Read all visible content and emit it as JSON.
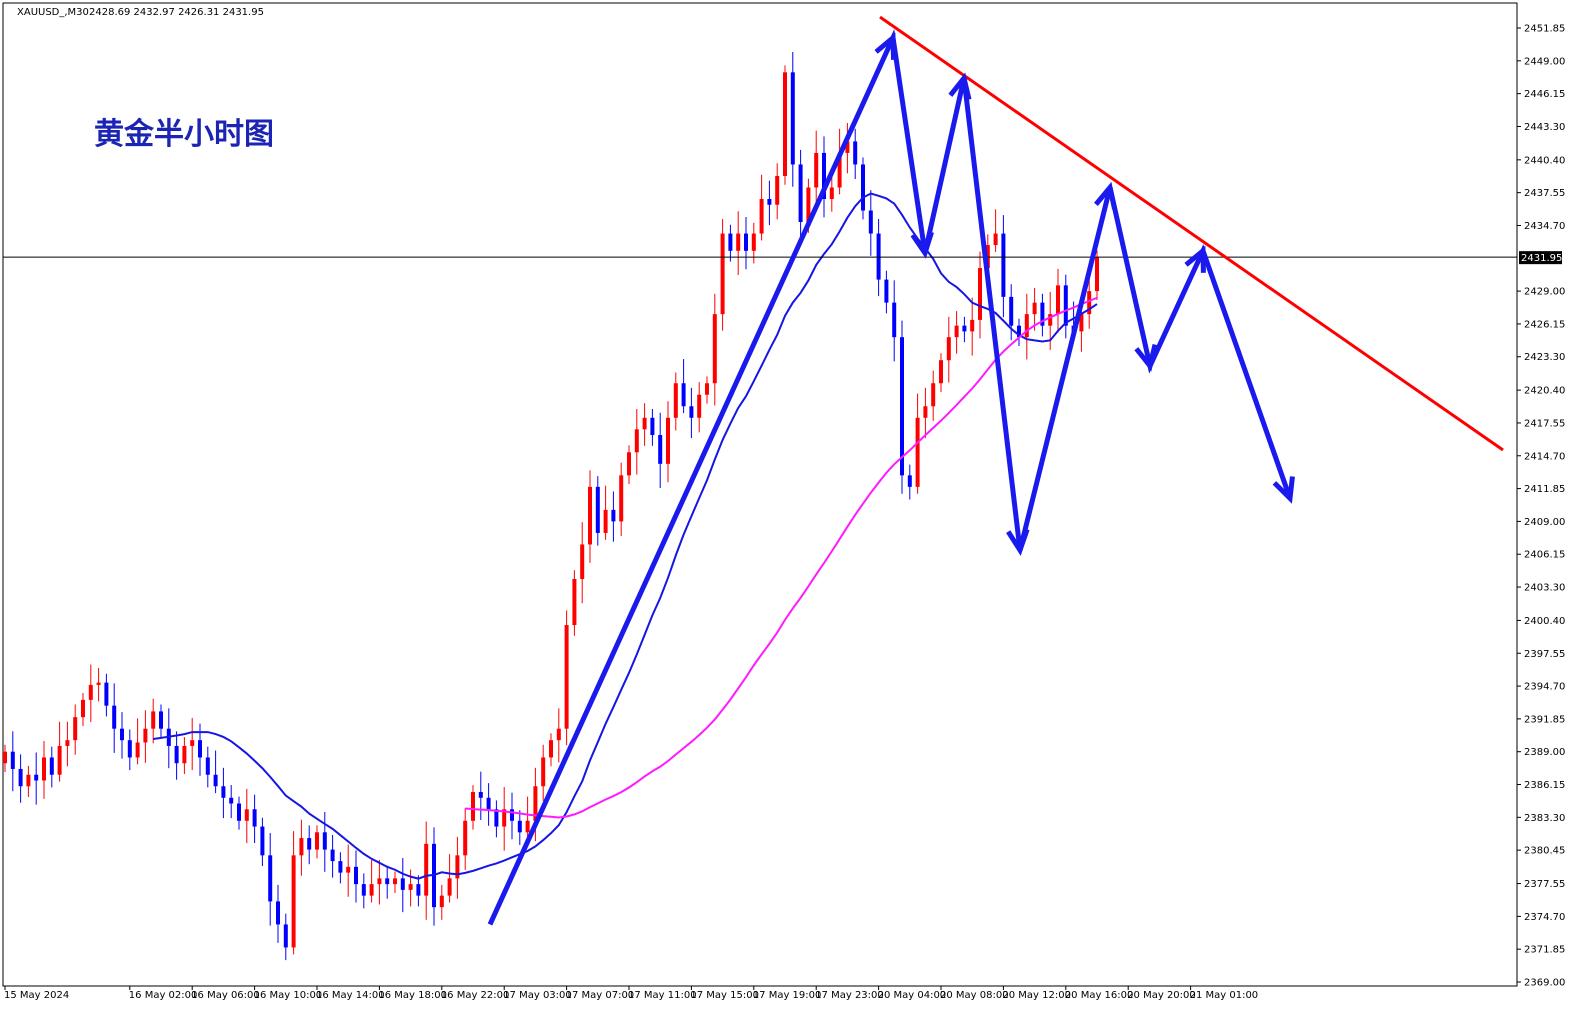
{
  "header": {
    "symbol": "XAUUSD_,M30",
    "ohlc": "2428.69 2432.97 2426.31 2431.95"
  },
  "colors": {
    "bull": "#ff0000",
    "bear": "#0000ff",
    "ma_fast": "#1515e6",
    "ma_slow": "#ff1aff",
    "trendline": "#ff0000",
    "arrows": "#1a1aee",
    "title": "#1c24b4"
  },
  "chart_data": {
    "type": "candlestick",
    "title": "黄金半小时图",
    "current_price": 2431.95,
    "current_price_label": "2431.95",
    "ylim": [
      2369.0,
      2453.0
    ],
    "y_ticks": [
      "2451.85",
      "2449.00",
      "2446.15",
      "2443.30",
      "2440.40",
      "2437.55",
      "2434.70",
      "2429.00",
      "2426.15",
      "2423.30",
      "2420.40",
      "2417.55",
      "2414.70",
      "2411.85",
      "2409.00",
      "2406.15",
      "2403.30",
      "2400.40",
      "2397.55",
      "2394.70",
      "2391.85",
      "2389.00",
      "2386.15",
      "2383.30",
      "2380.45",
      "2377.55",
      "2374.70",
      "2371.85",
      "2369.00"
    ],
    "x_labels": [
      {
        "label": "15 May 2024",
        "bar": 0
      },
      {
        "label": "16 May 02:00",
        "bar": 16
      },
      {
        "label": "16 May 06:00",
        "bar": 24
      },
      {
        "label": "16 May 10:00",
        "bar": 32
      },
      {
        "label": "16 May 14:00",
        "bar": 40
      },
      {
        "label": "16 May 18:00",
        "bar": 48
      },
      {
        "label": "16 May 22:00",
        "bar": 56
      },
      {
        "label": "17 May 03:00",
        "bar": 64
      },
      {
        "label": "17 May 07:00",
        "bar": 72
      },
      {
        "label": "17 May 11:00",
        "bar": 80
      },
      {
        "label": "17 May 15:00",
        "bar": 88
      },
      {
        "label": "17 May 19:00",
        "bar": 96
      },
      {
        "label": "17 May 23:00",
        "bar": 104
      },
      {
        "label": "20 May 04:00",
        "bar": 112
      },
      {
        "label": "20 May 08:00",
        "bar": 120
      },
      {
        "label": "20 May 12:00",
        "bar": 128
      },
      {
        "label": "20 May 16:00",
        "bar": 136
      },
      {
        "label": "20 May 20:00",
        "bar": 144
      },
      {
        "label": "21 May 01:00",
        "bar": 152
      }
    ],
    "closes": [
      2389.0,
      2387.5,
      2386.0,
      2387.0,
      2386.5,
      2388.5,
      2387.0,
      2389.5,
      2390.0,
      2392.0,
      2393.5,
      2394.8,
      2395.0,
      2393.0,
      2391.0,
      2390.0,
      2388.5,
      2389.8,
      2391.0,
      2392.5,
      2391.0,
      2389.5,
      2388.0,
      2389.5,
      2390.0,
      2388.5,
      2387.0,
      2386.0,
      2385.0,
      2384.5,
      2383.0,
      2384.0,
      2382.5,
      2380.0,
      2376.0,
      2374.0,
      2372.0,
      2380.0,
      2381.5,
      2380.5,
      2382.0,
      2380.5,
      2379.5,
      2378.5,
      2379.0,
      2377.5,
      2376.5,
      2377.5,
      2378.0,
      2377.5,
      2378.0,
      2377.0,
      2377.5,
      2376.5,
      2381.0,
      2375.5,
      2376.5,
      2378.0,
      2380.0,
      2383.0,
      2385.5,
      2385.0,
      2384.0,
      2382.5,
      2384.0,
      2383.0,
      2382.0,
      2383.0,
      2386.0,
      2388.5,
      2390.0,
      2391.0,
      2400.0,
      2404.0,
      2407.0,
      2412.0,
      2408.0,
      2410.0,
      2409.0,
      2413.0,
      2415.0,
      2417.0,
      2418.0,
      2416.5,
      2414.0,
      2418.0,
      2421.0,
      2419.0,
      2418.0,
      2420.0,
      2421.0,
      2427.0,
      2434.0,
      2432.5,
      2434.0,
      2432.5,
      2434.0,
      2437.0,
      2436.5,
      2439.0,
      2448.0,
      2440.0,
      2435.0,
      2438.0,
      2441.0,
      2437.0,
      2438.0,
      2441.0,
      2442.0,
      2440.0,
      2436.0,
      2434.0,
      2430.0,
      2428.0,
      2425.0,
      2413.0,
      2412.0,
      2418.0,
      2419.0,
      2421.0,
      2423.0,
      2425.0,
      2426.0,
      2425.5,
      2426.5,
      2431.0,
      2433.0,
      2434.0,
      2428.5,
      2426.0,
      2425.0,
      2427.0,
      2428.0,
      2426.0,
      2427.0,
      2429.5,
      2426.0,
      2425.5,
      2427.0,
      2429.0,
      2431.95
    ]
  },
  "annotations": {
    "title_text": "黄金半小时图"
  }
}
